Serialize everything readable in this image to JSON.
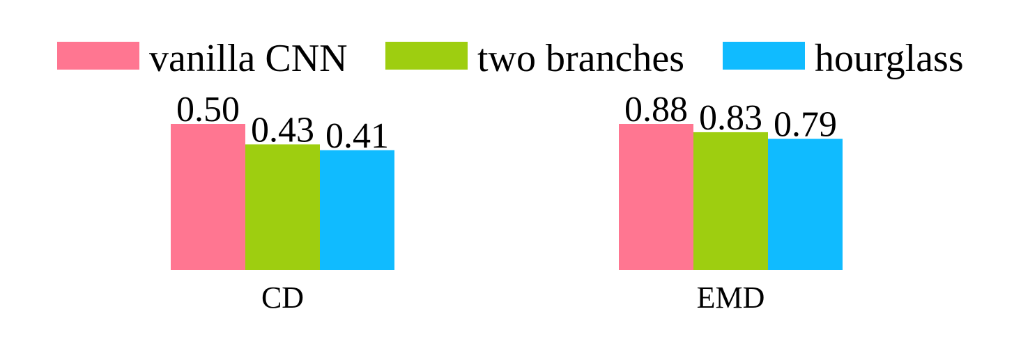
{
  "chart_data": {
    "type": "bar",
    "categories": [
      "CD",
      "EMD"
    ],
    "series": [
      {
        "name": "vanilla CNN",
        "color": "#FF7691",
        "values": [
          0.5,
          0.88
        ],
        "labels": [
          "0.50",
          "0.88"
        ]
      },
      {
        "name": "two branches",
        "color": "#9ECE10",
        "values": [
          0.43,
          0.83
        ],
        "labels": [
          "0.43",
          "0.83"
        ]
      },
      {
        "name": "hourglass",
        "color": "#10BBFF",
        "values": [
          0.41,
          0.79
        ],
        "labels": [
          "0.41",
          "0.79"
        ]
      }
    ],
    "legend_position": "top",
    "grid": false,
    "axes_visible": false,
    "independent_scales": true,
    "ylim_per_category": [
      [
        0,
        0.5
      ],
      [
        0,
        0.88
      ]
    ]
  }
}
